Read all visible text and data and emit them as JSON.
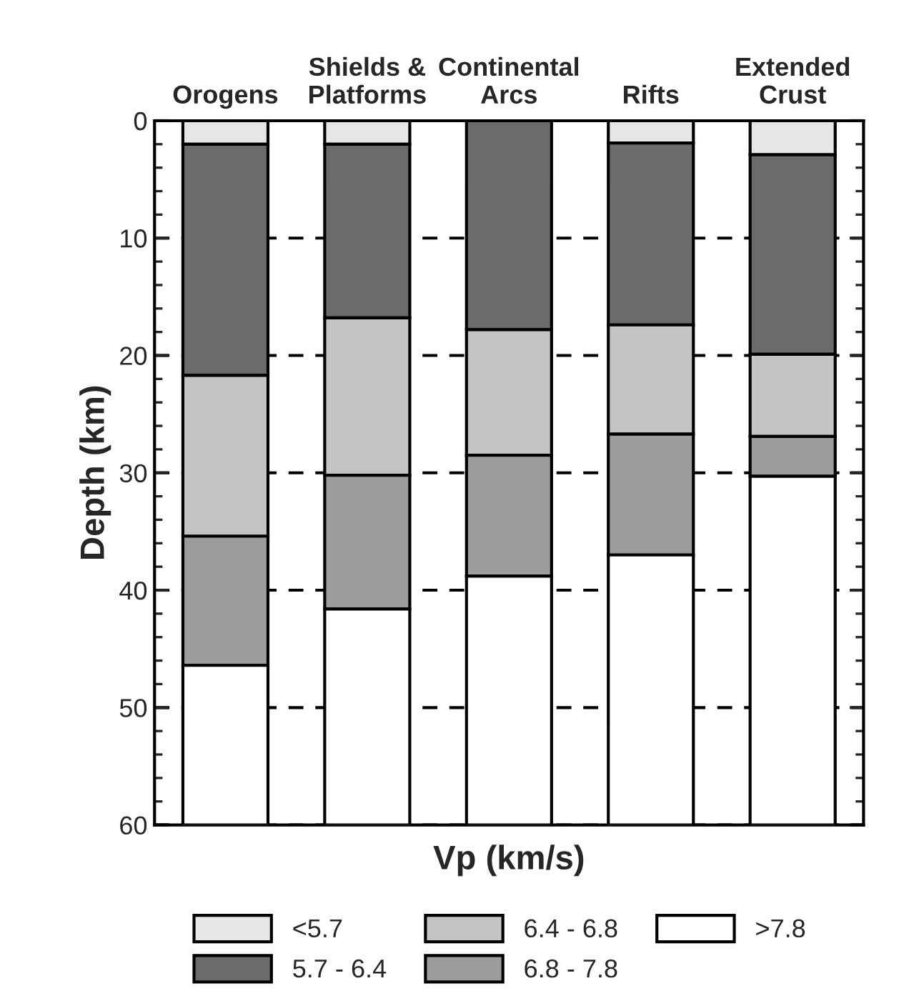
{
  "chart_data": {
    "type": "bar",
    "stacked": true,
    "xlabel": "Vp (km/s)",
    "ylabel": "Depth (km)",
    "categories": [
      "Orogens",
      "Shields &\nPlatforms",
      "Continental\nArcs",
      "Rifts",
      "Extended\nCrust"
    ],
    "series": [
      {
        "name": "<5.7",
        "color": "#e6e6e6",
        "values": [
          2.0,
          2.0,
          0,
          1.9,
          2.9
        ]
      },
      {
        "name": "5.7 - 6.4",
        "color": "#6b6b6b",
        "values": [
          19.7,
          14.8,
          17.8,
          15.5,
          17.0
        ]
      },
      {
        "name": "6.4 - 6.8",
        "color": "#c4c4c4",
        "values": [
          13.7,
          13.4,
          10.7,
          9.3,
          7.0
        ]
      },
      {
        "name": "6.8 - 7.8",
        "color": "#9c9c9c",
        "values": [
          11.0,
          11.4,
          10.3,
          10.3,
          3.4
        ]
      },
      {
        "name": ">7.8",
        "color": "#ffffff",
        "values": [
          13.6,
          18.4,
          21.2,
          23.0,
          29.7
        ]
      }
    ],
    "ylim": [
      60,
      0
    ],
    "yticks": [
      0,
      10,
      20,
      30,
      40,
      50,
      60
    ],
    "grid": "y",
    "legend": "bottom"
  }
}
